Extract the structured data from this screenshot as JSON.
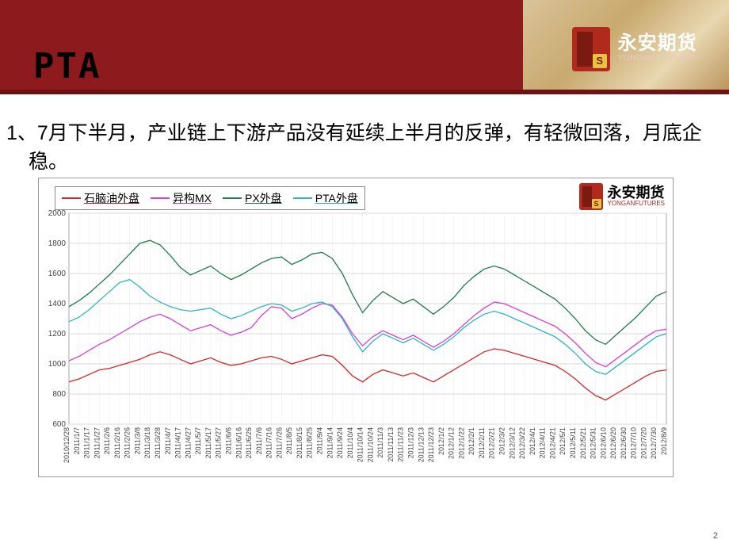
{
  "header": {
    "title": "PTA",
    "logo_cn": "永安期货",
    "logo_en": "YONGAN FUTURES",
    "bg_color": "#8d1b1d"
  },
  "body_text_line1": "1、7月下半月，产业链上下游产品没有延续上半月的反弹，有轻微回落，月底企",
  "body_text_line2": "稳。",
  "body_fontsize": 25,
  "page_number": "2",
  "chart": {
    "type": "line",
    "background_color": "#ffffff",
    "grid_color": "#d9d9d9",
    "border_color": "#999999",
    "y": {
      "min": 600,
      "max": 2000,
      "step": 200,
      "ticks": [
        600,
        800,
        1000,
        1200,
        1400,
        1600,
        1800,
        2000
      ],
      "fontsize": 10
    },
    "x": {
      "labels": [
        "2010/12/28",
        "2011/1/7",
        "2011/1/17",
        "2011/1/27",
        "2011/2/6",
        "2011/2/16",
        "2011/2/26",
        "2011/3/8",
        "2011/3/18",
        "2011/3/28",
        "2011/4/7",
        "2011/4/17",
        "2011/4/27",
        "2011/5/7",
        "2011/5/17",
        "2011/5/27",
        "2011/6/6",
        "2011/6/16",
        "2011/6/26",
        "2011/7/6",
        "2011/7/16",
        "2011/7/26",
        "2011/8/5",
        "2011/8/15",
        "2011/8/25",
        "2011/9/4",
        "2011/9/14",
        "2011/9/24",
        "2011/10/4",
        "2011/10/14",
        "2011/10/24",
        "2011/11/3",
        "2011/11/13",
        "2011/11/23",
        "2011/12/3",
        "2011/12/13",
        "2011/12/23",
        "2012/1/2",
        "2012/1/12",
        "2012/1/22",
        "2012/2/1",
        "2012/2/11",
        "2012/2/21",
        "2012/3/2",
        "2012/3/12",
        "2012/3/22",
        "2012/4/1",
        "2012/4/11",
        "2012/4/21",
        "2012/5/1",
        "2012/5/11",
        "2012/5/21",
        "2012/5/31",
        "2012/6/10",
        "2012/6/20",
        "2012/6/30",
        "2012/7/10",
        "2012/7/20",
        "2012/7/30",
        "2012/8/9"
      ],
      "fontsize": 9
    },
    "series": [
      {
        "name": "石脑油外盘",
        "color": "#d62728",
        "width": 1.3,
        "data": [
          880,
          900,
          930,
          960,
          970,
          990,
          1010,
          1030,
          1060,
          1080,
          1060,
          1030,
          1000,
          1020,
          1040,
          1010,
          990,
          1000,
          1020,
          1040,
          1050,
          1030,
          1000,
          1020,
          1040,
          1060,
          1050,
          990,
          920,
          880,
          930,
          960,
          940,
          920,
          940,
          910,
          880,
          920,
          960,
          1000,
          1040,
          1080,
          1100,
          1090,
          1070,
          1050,
          1030,
          1010,
          990,
          950,
          900,
          840,
          790,
          760,
          800,
          840,
          880,
          920,
          950,
          960
        ]
      },
      {
        "name": "异构MX",
        "color": "#d63fd6",
        "width": 1.3,
        "data": [
          1020,
          1050,
          1090,
          1130,
          1160,
          1200,
          1240,
          1280,
          1310,
          1330,
          1300,
          1260,
          1220,
          1240,
          1260,
          1220,
          1190,
          1210,
          1240,
          1320,
          1380,
          1370,
          1300,
          1330,
          1370,
          1400,
          1390,
          1310,
          1200,
          1120,
          1180,
          1220,
          1190,
          1160,
          1190,
          1150,
          1110,
          1150,
          1200,
          1260,
          1320,
          1370,
          1410,
          1400,
          1370,
          1340,
          1310,
          1280,
          1250,
          1200,
          1140,
          1070,
          1010,
          980,
          1030,
          1080,
          1130,
          1180,
          1220,
          1230
        ]
      },
      {
        "name": "PX外盘",
        "color": "#1f7a4d",
        "width": 1.3,
        "data": [
          1380,
          1420,
          1470,
          1530,
          1590,
          1660,
          1730,
          1800,
          1820,
          1790,
          1720,
          1640,
          1590,
          1620,
          1650,
          1600,
          1560,
          1590,
          1630,
          1670,
          1700,
          1710,
          1660,
          1690,
          1730,
          1740,
          1700,
          1600,
          1460,
          1340,
          1420,
          1480,
          1440,
          1400,
          1430,
          1380,
          1330,
          1380,
          1440,
          1520,
          1580,
          1630,
          1650,
          1630,
          1590,
          1550,
          1510,
          1470,
          1430,
          1370,
          1300,
          1220,
          1160,
          1130,
          1190,
          1250,
          1310,
          1380,
          1450,
          1480
        ]
      },
      {
        "name": "PTA外盘",
        "color": "#2db3c4",
        "width": 1.3,
        "data": [
          1280,
          1310,
          1360,
          1420,
          1480,
          1540,
          1560,
          1510,
          1450,
          1410,
          1380,
          1360,
          1350,
          1360,
          1370,
          1330,
          1300,
          1320,
          1350,
          1380,
          1400,
          1390,
          1350,
          1370,
          1400,
          1410,
          1380,
          1300,
          1180,
          1080,
          1150,
          1200,
          1170,
          1140,
          1170,
          1130,
          1090,
          1130,
          1180,
          1240,
          1290,
          1330,
          1350,
          1330,
          1300,
          1270,
          1240,
          1210,
          1180,
          1130,
          1070,
          1000,
          950,
          930,
          980,
          1030,
          1080,
          1130,
          1180,
          1200
        ]
      }
    ],
    "legend": {
      "fontsize": 14,
      "border_color": "#888888",
      "bg": "#ffffff"
    },
    "logo_small": {
      "cn": "永安期货",
      "en": "YONGANFUTURES"
    }
  }
}
